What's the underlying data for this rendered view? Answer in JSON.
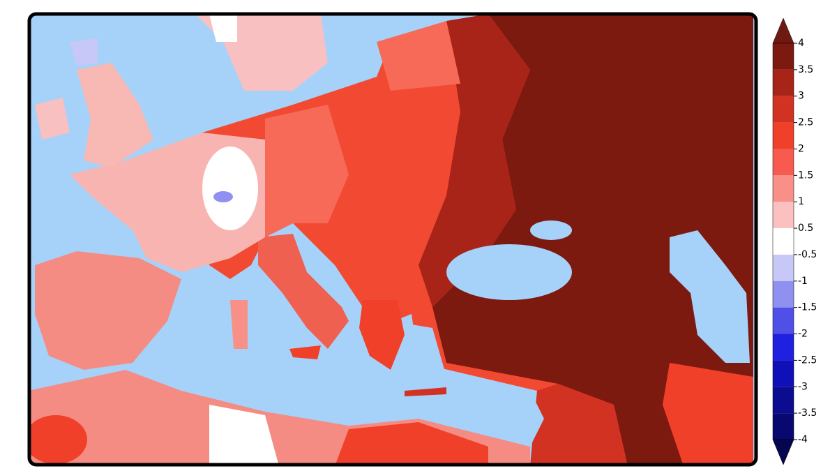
{
  "colorbar": {
    "ticks": [
      4,
      3.5,
      3,
      2.5,
      2,
      1.5,
      1,
      0.5,
      -0.5,
      -1,
      -1.5,
      -2,
      -2.5,
      -3,
      -3.5,
      -4
    ],
    "colors": [
      "#6e1a12",
      "#7c1a10",
      "#a82418",
      "#d23222",
      "#f0402a",
      "#f85a50",
      "#f89088",
      "#fbc0c0",
      "#ffffff",
      "#c8c8f8",
      "#9090f0",
      "#5050e8",
      "#2020e0",
      "#1010b8",
      "#0c0c90",
      "#080870",
      "#060650"
    ],
    "extend": "both"
  }
}
